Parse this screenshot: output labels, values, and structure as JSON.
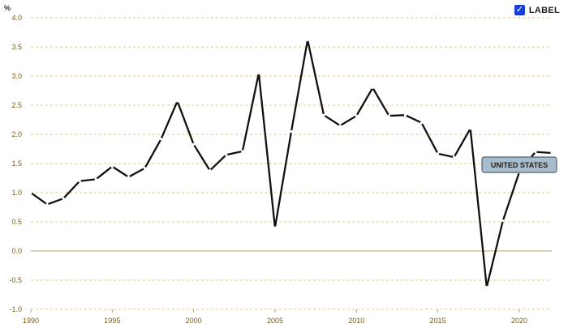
{
  "label_toggle": {
    "text": "LABEL",
    "checked": true,
    "checkmark": "✓",
    "accent": "#1a3fd6"
  },
  "colors": {
    "line": "#111111",
    "grid": "#d9c98a",
    "zero_line": "#b8a46a",
    "tick_text": "#7a5c1e"
  },
  "chart_data": {
    "type": "line",
    "unit_label": "%",
    "ylim": [
      -1.0,
      4.0
    ],
    "y_ticks": [
      "4.0",
      "3.5",
      "3.0",
      "2.5",
      "2.0",
      "1.5",
      "1.0",
      "0.5",
      "0.0",
      "-0.5",
      "-1.0"
    ],
    "x_ticks": [
      "1990",
      "1995",
      "2000",
      "2005",
      "2010",
      "2015",
      "2020"
    ],
    "grid": "horizontal dashed",
    "series": [
      {
        "name": "UNITED STATES",
        "x": [
          1990,
          1991,
          1992,
          1993,
          1994,
          1995,
          1996,
          1997,
          1998,
          1999,
          2000,
          2001,
          2002,
          2003,
          2004,
          2005,
          2006,
          2007,
          2008,
          2009,
          2010,
          2011,
          2012,
          2013,
          2014,
          2015,
          2016,
          2017,
          2018,
          2019,
          2020,
          2021,
          2022
        ],
        "values": [
          1.0,
          0.8,
          0.9,
          1.2,
          1.23,
          1.45,
          1.27,
          1.42,
          1.92,
          2.57,
          1.83,
          1.38,
          1.65,
          1.71,
          3.05,
          0.4,
          2.05,
          3.62,
          2.33,
          2.15,
          2.32,
          2.8,
          2.32,
          2.33,
          2.2,
          1.67,
          1.61,
          2.1,
          -0.62,
          0.52,
          1.35,
          1.7,
          1.68
        ]
      }
    ]
  }
}
